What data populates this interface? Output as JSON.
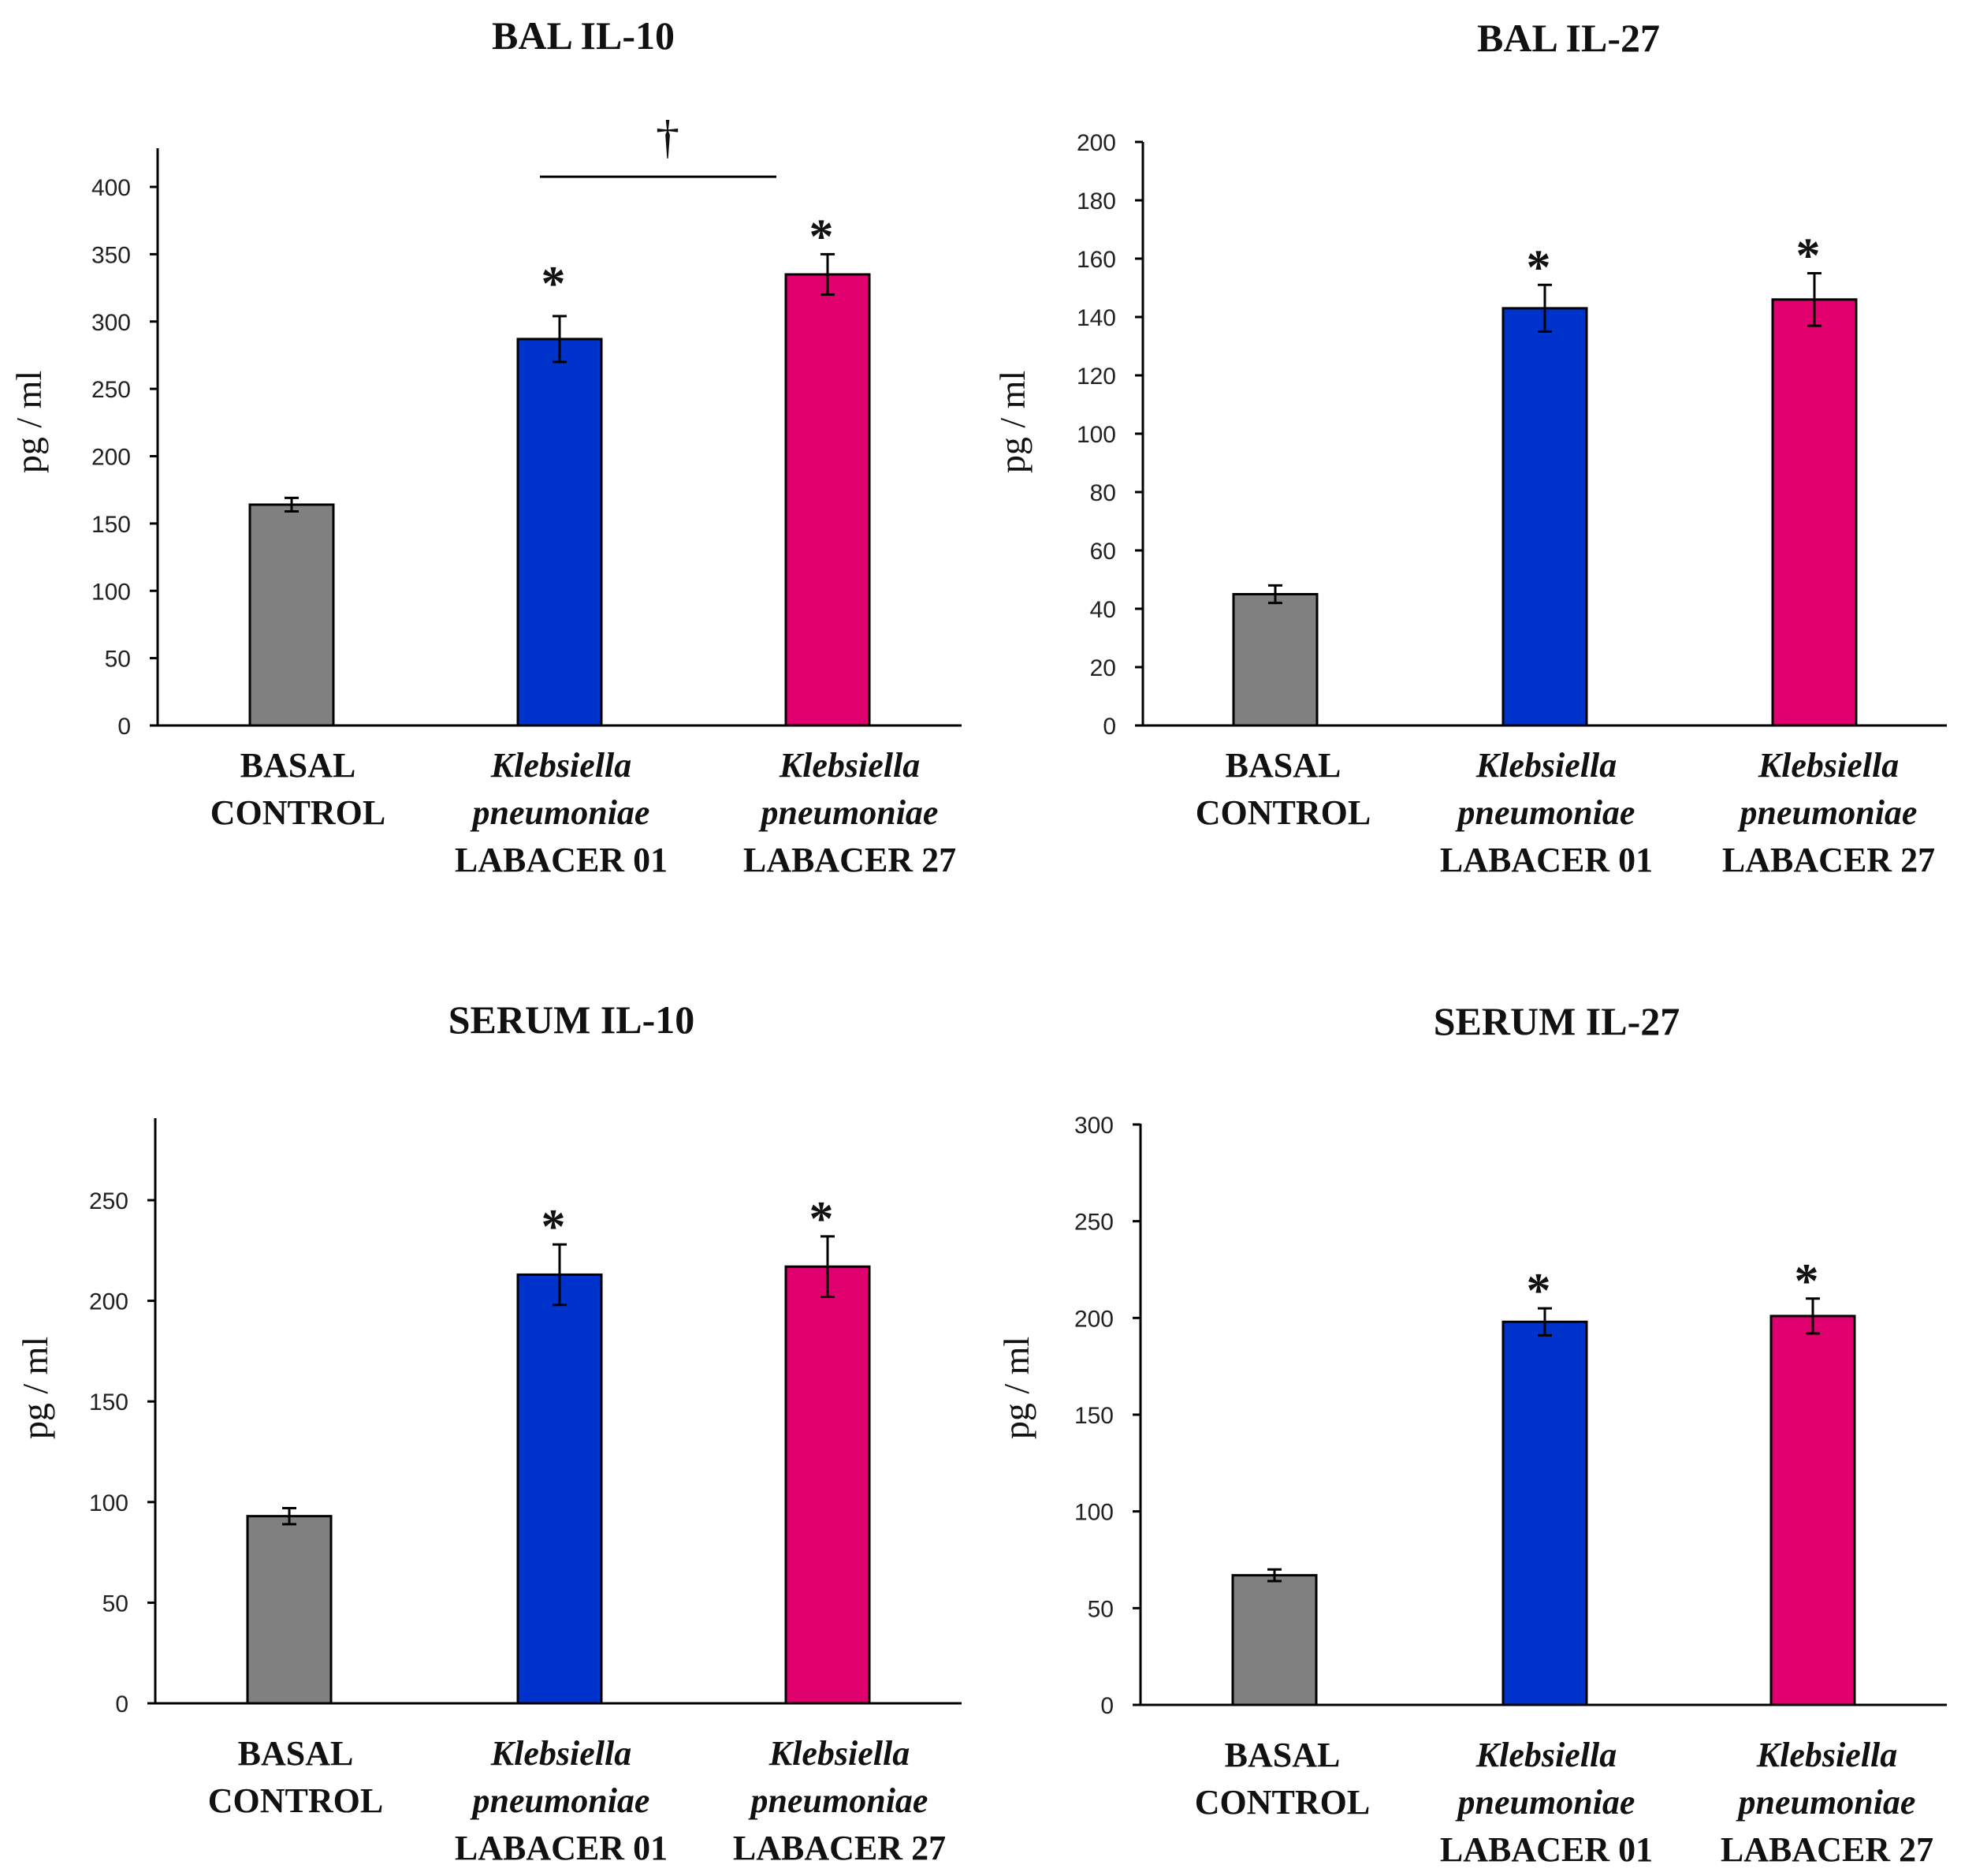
{
  "chart_data": [
    {
      "type": "bar",
      "title": "BAL IL-10",
      "ylabel": "pg / ml",
      "ylim": [
        0,
        400
      ],
      "yticks": [
        0,
        50,
        100,
        150,
        200,
        250,
        300,
        350,
        400
      ],
      "categories": [
        [
          "BASAL",
          "CONTROL"
        ],
        [
          "Klebsiella",
          "pneumoniae",
          "LABACER 01"
        ],
        [
          "Klebsiella",
          "pneumoniae",
          "LABACER 27"
        ]
      ],
      "values": [
        164,
        287,
        335
      ],
      "errors": [
        5,
        17,
        15
      ],
      "colors": [
        "#808080",
        "#0033cc",
        "#e0006e"
      ],
      "markers": [
        "",
        "*",
        "*"
      ],
      "bracket": {
        "from": 1,
        "to": 2,
        "label": "†"
      }
    },
    {
      "type": "bar",
      "title": "BAL IL-27",
      "ylabel": "pg / ml",
      "ylim": [
        0,
        200
      ],
      "yticks": [
        0,
        20,
        40,
        60,
        80,
        100,
        120,
        140,
        160,
        180,
        200
      ],
      "categories": [
        [
          "BASAL",
          "CONTROL"
        ],
        [
          "Klebsiella",
          "pneumoniae",
          "LABACER 01"
        ],
        [
          "Klebsiella",
          "pneumoniae",
          "LABACER 27"
        ]
      ],
      "values": [
        45,
        143,
        146
      ],
      "errors": [
        3,
        8,
        9
      ],
      "colors": [
        "#808080",
        "#0033cc",
        "#e0006e"
      ],
      "markers": [
        "",
        "*",
        "*"
      ]
    },
    {
      "type": "bar",
      "title": "SERUM IL-10",
      "ylabel": "pg / ml",
      "ylim": [
        0,
        250
      ],
      "yticks": [
        0,
        50,
        100,
        150,
        200,
        250
      ],
      "ymax_axis": 290,
      "categories": [
        [
          "BASAL",
          "CONTROL"
        ],
        [
          "Klebsiella",
          "pneumoniae",
          "LABACER 01"
        ],
        [
          "Klebsiella",
          "pneumoniae",
          "LABACER 27"
        ]
      ],
      "values": [
        93,
        213,
        217
      ],
      "errors": [
        4,
        15,
        15
      ],
      "colors": [
        "#808080",
        "#0033cc",
        "#e0006e"
      ],
      "markers": [
        "",
        "*",
        "*"
      ]
    },
    {
      "type": "bar",
      "title": "SERUM IL-27",
      "ylabel": "pg / ml",
      "ylim": [
        0,
        300
      ],
      "yticks": [
        0,
        50,
        100,
        150,
        200,
        250,
        300
      ],
      "categories": [
        [
          "BASAL",
          "CONTROL"
        ],
        [
          "Klebsiella",
          "pneumoniae",
          "LABACER 01"
        ],
        [
          "Klebsiella",
          "pneumoniae",
          "LABACER 27"
        ]
      ],
      "values": [
        67,
        198,
        201
      ],
      "errors": [
        3,
        7,
        9
      ],
      "colors": [
        "#808080",
        "#0033cc",
        "#e0006e"
      ],
      "markers": [
        "",
        "*",
        "*"
      ]
    }
  ]
}
